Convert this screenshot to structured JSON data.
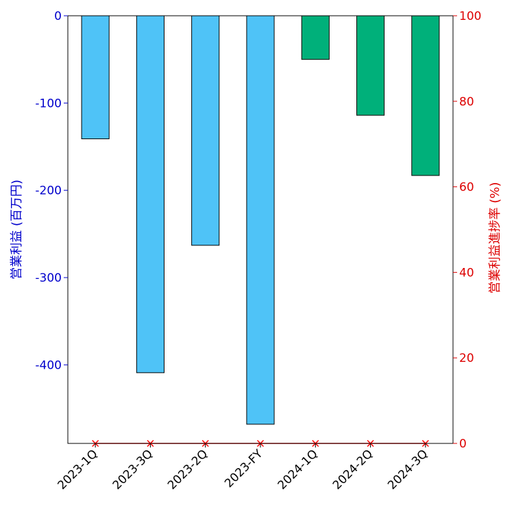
{
  "chart_data": {
    "type": "bar",
    "categories": [
      "2023-1Q",
      "2023-3Q",
      "2023-2Q",
      "2023-FY",
      "2024-1Q",
      "2024-2Q",
      "2024-3Q"
    ],
    "series": [
      {
        "values": [
          -141,
          -409,
          -263,
          -468,
          -50,
          -114,
          -183
        ],
        "colors": [
          "#4fc3f7",
          "#4fc3f7",
          "#4fc3f7",
          "#4fc3f7",
          "#00b07a",
          "#00b07a",
          "#00b07a"
        ]
      },
      {
        "axis": "right",
        "type": "line",
        "values": [
          0,
          0,
          0,
          0,
          0,
          0,
          0
        ],
        "color": "#ff0000",
        "marker": "x"
      }
    ],
    "ylabel_left": "営業利益 (百万円)",
    "ylabel_right": "営業利益進捗率 (%)",
    "ylim_left": [
      -490,
      0
    ],
    "ylim_right": [
      0,
      100
    ],
    "yticks_left": [
      "0",
      "-100",
      "-200",
      "-300",
      "-400"
    ],
    "yticks_right": [
      "0",
      "20",
      "40",
      "60",
      "80",
      "100"
    ],
    "left_axis_color": "#0000cc",
    "right_axis_color": "#dd0000",
    "grid": false
  }
}
